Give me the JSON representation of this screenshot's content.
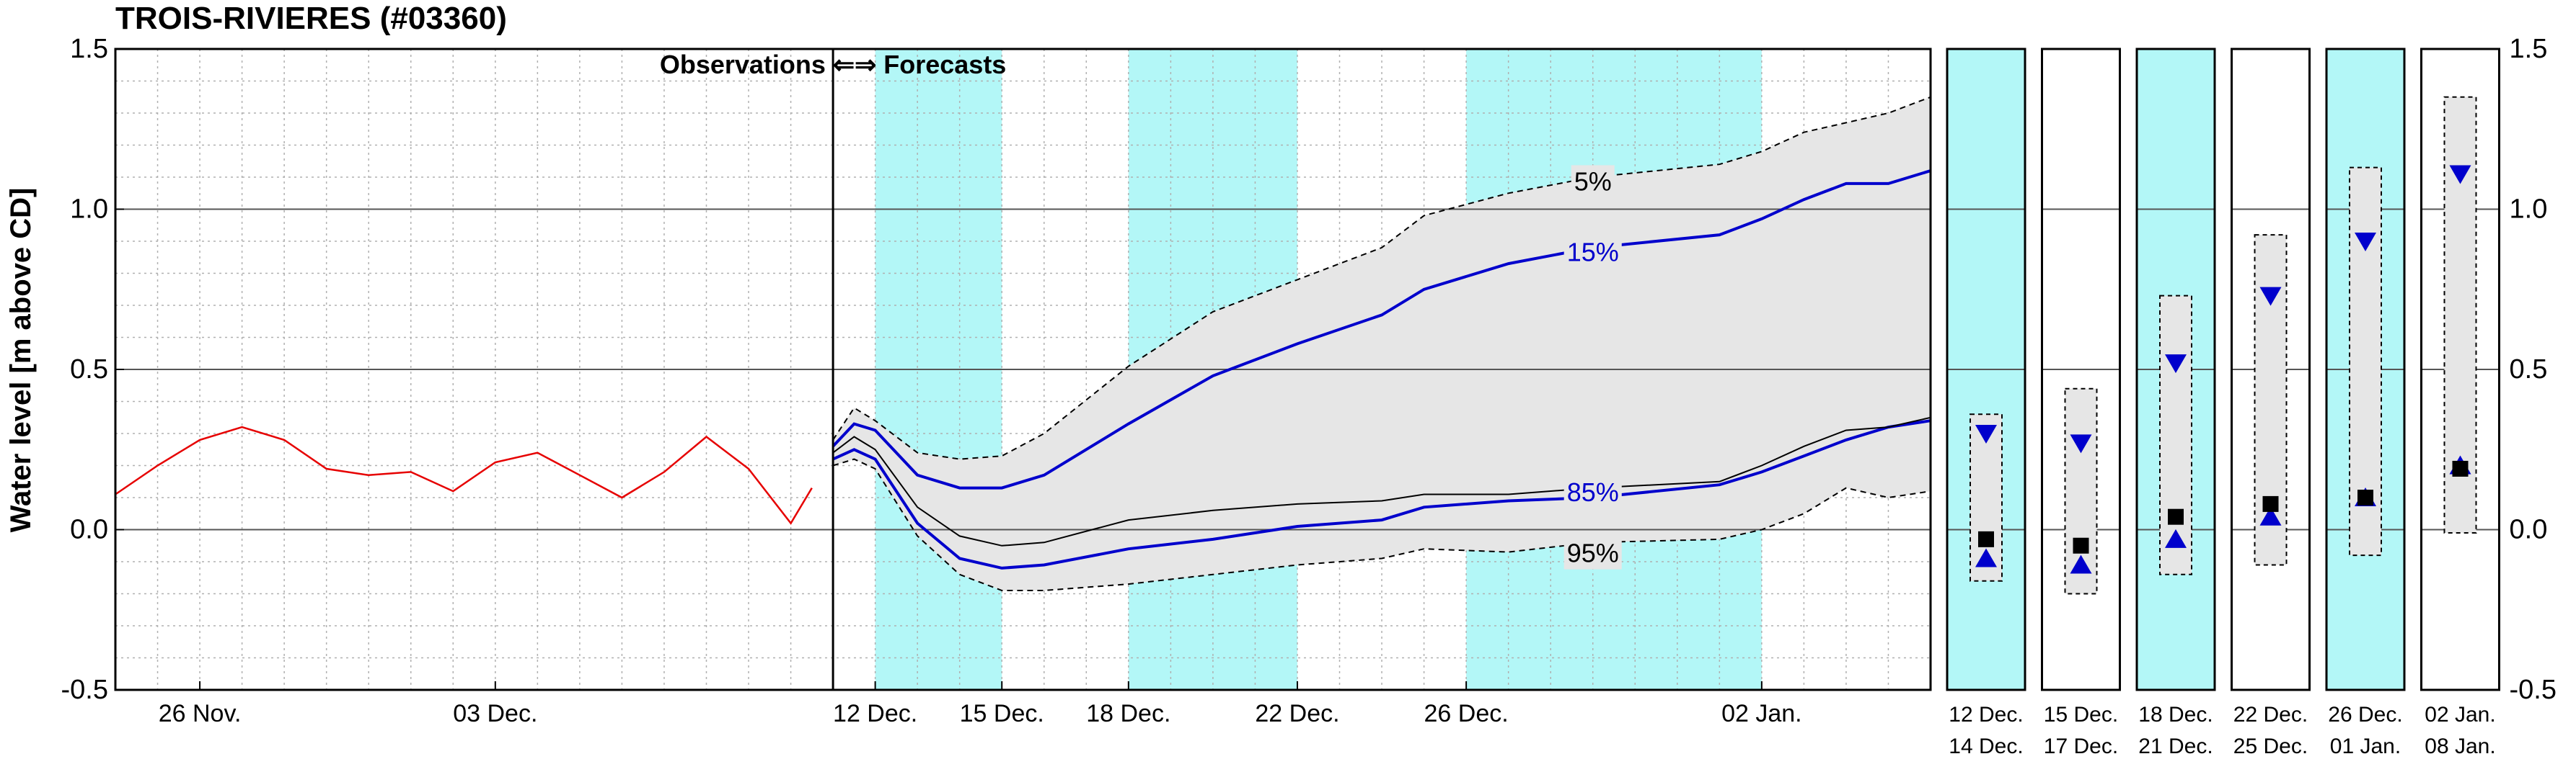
{
  "chart_data": {
    "type": "line",
    "title": "TROIS-RIVIERES (#03360)",
    "ylabel": "Water level [m above CD]",
    "ylim": [
      -0.5,
      1.5
    ],
    "yticks": [
      "1.5",
      "1.0",
      "0.5",
      "0.0",
      "-0.5"
    ],
    "grid": true,
    "annotation": "Observations ⇐⇒ Forecasts",
    "colors": {
      "observed": "#e60000",
      "median": "#000000",
      "band": "#0000cc",
      "envelope": "#000000",
      "shade_fill": "#e6e6e6",
      "highlight": "#b3f7f7"
    },
    "main_axis": {
      "x_start": "2022-11-24",
      "x_end": "2023-01-06",
      "forecast_start": "2022-12-11",
      "xtick_labels": [
        {
          "date": "2022-11-26",
          "label": "26 Nov."
        },
        {
          "date": "2022-12-03",
          "label": "03 Dec."
        },
        {
          "date": "2022-12-12",
          "label": "12 Dec."
        },
        {
          "date": "2022-12-15",
          "label": "15 Dec."
        },
        {
          "date": "2022-12-18",
          "label": "18 Dec."
        },
        {
          "date": "2022-12-22",
          "label": "22 Dec."
        },
        {
          "date": "2022-12-26",
          "label": "26 Dec."
        },
        {
          "date": "2023-01-02",
          "label": "02 Jan."
        }
      ],
      "highlight_periods": [
        [
          "2022-12-12",
          "2022-12-15"
        ],
        [
          "2022-12-18",
          "2022-12-22"
        ],
        [
          "2022-12-26",
          "2023-01-02"
        ]
      ]
    },
    "series": [
      {
        "name": "observed",
        "points": [
          [
            "2022-11-24",
            0.11
          ],
          [
            "2022-11-25",
            0.2
          ],
          [
            "2022-11-26",
            0.28
          ],
          [
            "2022-11-27",
            0.32
          ],
          [
            "2022-11-28",
            0.28
          ],
          [
            "2022-11-29",
            0.19
          ],
          [
            "2022-11-30",
            0.17
          ],
          [
            "2022-12-01",
            0.18
          ],
          [
            "2022-12-02",
            0.12
          ],
          [
            "2022-12-03",
            0.21
          ],
          [
            "2022-12-04",
            0.24
          ],
          [
            "2022-12-05",
            0.17
          ],
          [
            "2022-12-06",
            0.1
          ],
          [
            "2022-12-07",
            0.18
          ],
          [
            "2022-12-08",
            0.29
          ],
          [
            "2022-12-09",
            0.19
          ],
          [
            "2022-12-10",
            0.02
          ],
          [
            "2022-12-10T12",
            0.13
          ]
        ]
      },
      {
        "name": "95%",
        "label": "95%",
        "points": [
          [
            "2022-12-11",
            0.2
          ],
          [
            "2022-12-11T12",
            0.22
          ],
          [
            "2022-12-12",
            0.19
          ],
          [
            "2022-12-13",
            -0.02
          ],
          [
            "2022-12-14",
            -0.14
          ],
          [
            "2022-12-15",
            -0.19
          ],
          [
            "2022-12-16",
            -0.19
          ],
          [
            "2022-12-18",
            -0.17
          ],
          [
            "2022-12-20",
            -0.14
          ],
          [
            "2022-12-22",
            -0.11
          ],
          [
            "2022-12-24",
            -0.09
          ],
          [
            "2022-12-25",
            -0.06
          ],
          [
            "2022-12-27",
            -0.07
          ],
          [
            "2022-12-29",
            -0.04
          ],
          [
            "2023-01-01",
            -0.03
          ],
          [
            "2023-01-02",
            0.0
          ],
          [
            "2023-01-03",
            0.05
          ],
          [
            "2023-01-04",
            0.13
          ],
          [
            "2023-01-05",
            0.1
          ],
          [
            "2023-01-06",
            0.12
          ]
        ]
      },
      {
        "name": "85%",
        "label": "85%",
        "points": [
          [
            "2022-12-11",
            0.22
          ],
          [
            "2022-12-11T12",
            0.25
          ],
          [
            "2022-12-12",
            0.22
          ],
          [
            "2022-12-13",
            0.02
          ],
          [
            "2022-12-14",
            -0.09
          ],
          [
            "2022-12-15",
            -0.12
          ],
          [
            "2022-12-16",
            -0.11
          ],
          [
            "2022-12-18",
            -0.06
          ],
          [
            "2022-12-20",
            -0.03
          ],
          [
            "2022-12-22",
            0.01
          ],
          [
            "2022-12-24",
            0.03
          ],
          [
            "2022-12-25",
            0.07
          ],
          [
            "2022-12-27",
            0.09
          ],
          [
            "2022-12-29",
            0.1
          ],
          [
            "2023-01-01",
            0.14
          ],
          [
            "2023-01-02",
            0.18
          ],
          [
            "2023-01-03",
            0.23
          ],
          [
            "2023-01-04",
            0.28
          ],
          [
            "2023-01-05",
            0.32
          ],
          [
            "2023-01-06",
            0.34
          ]
        ]
      },
      {
        "name": "median",
        "points": [
          [
            "2022-12-11",
            0.24
          ],
          [
            "2022-12-11T12",
            0.29
          ],
          [
            "2022-12-12",
            0.25
          ],
          [
            "2022-12-13",
            0.07
          ],
          [
            "2022-12-14",
            -0.02
          ],
          [
            "2022-12-15",
            -0.05
          ],
          [
            "2022-12-16",
            -0.04
          ],
          [
            "2022-12-18",
            0.03
          ],
          [
            "2022-12-20",
            0.06
          ],
          [
            "2022-12-22",
            0.08
          ],
          [
            "2022-12-24",
            0.09
          ],
          [
            "2022-12-25",
            0.11
          ],
          [
            "2022-12-27",
            0.11
          ],
          [
            "2022-12-29",
            0.13
          ],
          [
            "2023-01-01",
            0.15
          ],
          [
            "2023-01-02",
            0.2
          ],
          [
            "2023-01-03",
            0.26
          ],
          [
            "2023-01-04",
            0.31
          ],
          [
            "2023-01-05",
            0.32
          ],
          [
            "2023-01-06",
            0.35
          ]
        ]
      },
      {
        "name": "15%",
        "label": "15%",
        "points": [
          [
            "2022-12-11",
            0.26
          ],
          [
            "2022-12-11T12",
            0.33
          ],
          [
            "2022-12-12",
            0.31
          ],
          [
            "2022-12-13",
            0.17
          ],
          [
            "2022-12-14",
            0.13
          ],
          [
            "2022-12-15",
            0.13
          ],
          [
            "2022-12-16",
            0.17
          ],
          [
            "2022-12-18",
            0.33
          ],
          [
            "2022-12-20",
            0.48
          ],
          [
            "2022-12-22",
            0.58
          ],
          [
            "2022-12-24",
            0.67
          ],
          [
            "2022-12-25",
            0.75
          ],
          [
            "2022-12-27",
            0.83
          ],
          [
            "2022-12-29",
            0.88
          ],
          [
            "2023-01-01",
            0.92
          ],
          [
            "2023-01-02",
            0.97
          ],
          [
            "2023-01-03",
            1.03
          ],
          [
            "2023-01-04",
            1.08
          ],
          [
            "2023-01-05",
            1.08
          ],
          [
            "2023-01-06",
            1.12
          ]
        ]
      },
      {
        "name": "5%",
        "label": "5%",
        "points": [
          [
            "2022-12-11",
            0.28
          ],
          [
            "2022-12-11T12",
            0.38
          ],
          [
            "2022-12-12",
            0.34
          ],
          [
            "2022-12-13",
            0.24
          ],
          [
            "2022-12-14",
            0.22
          ],
          [
            "2022-12-15",
            0.23
          ],
          [
            "2022-12-16",
            0.3
          ],
          [
            "2022-12-18",
            0.51
          ],
          [
            "2022-12-20",
            0.68
          ],
          [
            "2022-12-22",
            0.78
          ],
          [
            "2022-12-24",
            0.88
          ],
          [
            "2022-12-25",
            0.98
          ],
          [
            "2022-12-27",
            1.05
          ],
          [
            "2022-12-29",
            1.1
          ],
          [
            "2023-01-01",
            1.14
          ],
          [
            "2023-01-02",
            1.18
          ],
          [
            "2023-01-03",
            1.24
          ],
          [
            "2023-01-04",
            1.27
          ],
          [
            "2023-01-05",
            1.3
          ],
          [
            "2023-01-06",
            1.35
          ]
        ]
      }
    ],
    "period_panels": [
      {
        "label_top": "12 Dec.",
        "label_bottom": "14 Dec.",
        "highlight": true,
        "low": -0.16,
        "high": 0.36,
        "max_marker": 0.3,
        "min_marker": -0.09,
        "median": -0.03
      },
      {
        "label_top": "15 Dec.",
        "label_bottom": "17 Dec.",
        "highlight": false,
        "low": -0.2,
        "high": 0.44,
        "max_marker": 0.27,
        "min_marker": -0.11,
        "median": -0.05
      },
      {
        "label_top": "18 Dec.",
        "label_bottom": "21 Dec.",
        "highlight": true,
        "low": -0.14,
        "high": 0.73,
        "max_marker": 0.52,
        "min_marker": -0.03,
        "median": 0.04
      },
      {
        "label_top": "22 Dec.",
        "label_bottom": "25 Dec.",
        "highlight": false,
        "low": -0.11,
        "high": 0.92,
        "max_marker": 0.73,
        "min_marker": 0.04,
        "median": 0.08
      },
      {
        "label_top": "26 Dec.",
        "label_bottom": "01 Jan.",
        "highlight": true,
        "low": -0.08,
        "high": 1.13,
        "max_marker": 0.9,
        "min_marker": 0.1,
        "median": 0.1
      },
      {
        "label_top": "02 Jan.",
        "label_bottom": "08 Jan.",
        "highlight": false,
        "low": -0.01,
        "high": 1.35,
        "max_marker": 1.11,
        "min_marker": 0.2,
        "median": 0.19
      }
    ]
  }
}
